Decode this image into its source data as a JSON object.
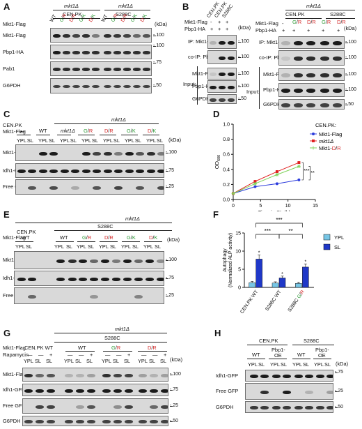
{
  "panels": {
    "A": {
      "letter": "A",
      "group1": "mkt1Δ",
      "group2": "mkt1Δ",
      "strain1": "CEN.PK",
      "strain2": "S288C",
      "row_label": "Mkt1-Flag",
      "lanes": [
        "WT",
        "G/R",
        "D/R",
        "G/K",
        "D/K",
        "WT",
        "G/R",
        "D/R",
        "G/K",
        "D/K"
      ],
      "blots": [
        "Mkt1-Flag",
        "Pbp1-HA",
        "Pab1",
        "G6PDH"
      ],
      "kda": "(kDa)",
      "markers": [
        "100",
        "100",
        "75",
        "50"
      ]
    },
    "B": {
      "letter": "B",
      "left": {
        "strain_cols": [
          "CEN.PK",
          "S288C"
        ],
        "rows": [
          {
            "label": "Mkt1-Flag",
            "values": [
              "-",
              "+",
              "+"
            ]
          },
          {
            "label": "Pbp1-HA",
            "values": [
              "+",
              "+",
              "+"
            ]
          }
        ],
        "kda": "(kDa)",
        "blots": [
          "IP: Mkt1-Flag",
          "co-IP: Pbp1-HA",
          "Mkt1-Flag",
          "Pbp1-HA",
          "G6PDH"
        ],
        "input": "Input:",
        "markers": [
          "100",
          "100",
          "100",
          "100",
          "50"
        ]
      },
      "right": {
        "group": "mkt1Δ",
        "strains": [
          "CEN.PK",
          "S288C"
        ],
        "rows": [
          {
            "label": "Mkt1-Flag",
            "values": [
              "-",
              "G/R",
              "D/R",
              "G/R",
              "D/R"
            ]
          },
          {
            "label": "Pbp1-HA",
            "values": [
              "+",
              "+",
              "+",
              "+",
              "+"
            ]
          }
        ],
        "kda": "(kDa)",
        "blots": [
          "IP: Mkt1-Flag",
          "co-IP: Pbp1-HA",
          "Mkt1-Flag",
          "Pbp1-HA",
          "G6PDH"
        ],
        "input": "Input:",
        "markers": [
          "100",
          "100",
          "100",
          "100",
          "50"
        ]
      }
    },
    "C": {
      "letter": "C",
      "strain": "CEN.PK",
      "row_label": "Mkt1-Flag",
      "group": "mkt1Δ",
      "conditions": [
        "—",
        "WT",
        "mkt1Δ",
        "G/R",
        "D/R",
        "G/K",
        "D/K"
      ],
      "lanes": [
        "YPL",
        "SL",
        "YPL",
        "SL",
        "YPL",
        "SL",
        "YPL",
        "SL",
        "YPL",
        "SL",
        "YPL",
        "SL",
        "YPL",
        "SL"
      ],
      "blots": [
        "Mkt1-Flag",
        "Idh1-GFP",
        "Free GFP"
      ],
      "kda": "(kDa)",
      "markers": [
        "100",
        "75",
        "25"
      ]
    },
    "D": {
      "letter": "D",
      "legend_title": "CEN.PK:",
      "significance": [
        "***",
        "**"
      ]
    },
    "E": {
      "letter": "E",
      "strain_top": "S288C",
      "group": "mkt1Δ",
      "row_label": "Mkt1-Flag",
      "conditions": [
        "CEN.PK WT",
        "WT",
        "G/R",
        "D/R",
        "G/K",
        "D/K"
      ],
      "lanes": [
        "YPL",
        "SL",
        "YPL",
        "SL",
        "YPL",
        "SL",
        "YPL",
        "SL",
        "YPL",
        "SL",
        "YPL",
        "SL"
      ],
      "blots": [
        "Mkt1-Flag",
        "Idh1-GFP",
        "Free GFP"
      ],
      "kda": "(kDa)",
      "markers": [
        "100",
        "75",
        "25"
      ]
    },
    "F": {
      "letter": "F",
      "significance": [
        "***",
        "***",
        "**"
      ],
      "star": "*"
    },
    "G": {
      "letter": "G",
      "group": "mkt1Δ",
      "strain_top": "S288C",
      "rows": [
        {
          "label": "Mkt1-Flag",
          "values": [
            "CEN.PK WT",
            "WT",
            "G/R",
            "D/R"
          ]
        },
        {
          "label": "Rapamycin",
          "values": [
            "—",
            "—",
            "+",
            "—",
            "—",
            "+",
            "—",
            "—",
            "+",
            "—",
            "—",
            "+"
          ]
        }
      ],
      "lanes": [
        "YPL",
        "SL",
        "SL",
        "YPL",
        "SL",
        "SL",
        "YPL",
        "SL",
        "SL",
        "YPL",
        "SL",
        "SL"
      ],
      "blots": [
        "Mkt1-Flag",
        "Idh1-GFP",
        "Free GFP",
        "G6PDH"
      ],
      "kda": "(kDa)",
      "markers": [
        "100",
        "75",
        "25",
        "50"
      ]
    },
    "H": {
      "letter": "H",
      "strains": [
        "CEN.PK",
        "S288C"
      ],
      "conditions": [
        "WT",
        "Pbp1-\nOE",
        "WT",
        "Pbp1-\nOE"
      ],
      "cond_labels": [
        "WT",
        "Pbp1-",
        "OE",
        "WT",
        "Pbp1-",
        "OE"
      ],
      "lanes": [
        "YPL",
        "SL",
        "YPL",
        "SL",
        "YPL",
        "SL",
        "YPL",
        "SL"
      ],
      "blots": [
        "Idh1-GFP",
        "Free GFP",
        "G6PDH"
      ],
      "kda": "(kDa)",
      "markers": [
        "75",
        "25",
        "50"
      ]
    }
  },
  "chart_data": [
    {
      "type": "line",
      "panel": "D",
      "title": "",
      "xlabel": "Time in SL (h)",
      "ylabel": "OD600",
      "xlim": [
        0,
        15
      ],
      "ylim": [
        0,
        1.0
      ],
      "xticks": [
        "0",
        "5",
        "10",
        "15"
      ],
      "yticks": [
        "0.0",
        "0.2",
        "0.4",
        "0.6",
        "0.8",
        "1.0"
      ],
      "x": [
        0,
        4,
        8,
        12
      ],
      "series": [
        {
          "name": "Mkt1-Flag",
          "color": "#2b3bdc",
          "values": [
            0.08,
            0.17,
            0.21,
            0.26
          ]
        },
        {
          "name": "mkt1Δ",
          "color": "#e02020",
          "values": [
            0.08,
            0.24,
            0.37,
            0.49
          ]
        },
        {
          "name": "Mkt1-D/R",
          "color": "#7fd35a",
          "values": [
            0.08,
            0.21,
            0.33,
            0.44
          ]
        }
      ]
    },
    {
      "type": "bar",
      "panel": "F",
      "ylabel": "Autophagy (Normalized ALP activity)",
      "ylabel_line1": "Autophagy",
      "ylabel_line2": "(Normalized ALP activity)",
      "ylim": [
        0,
        15
      ],
      "yticks": [
        "0",
        "5",
        "10",
        "15"
      ],
      "categories": [
        "CEN.PK WT",
        "S288C WT",
        "S288C G/R"
      ],
      "series": [
        {
          "name": "YPL",
          "color": "#77c6e6",
          "values": [
            1.3,
            1.2,
            1.1
          ]
        },
        {
          "name": "SL",
          "color": "#1f38c8",
          "values": [
            7.8,
            2.6,
            5.6
          ]
        }
      ]
    }
  ]
}
